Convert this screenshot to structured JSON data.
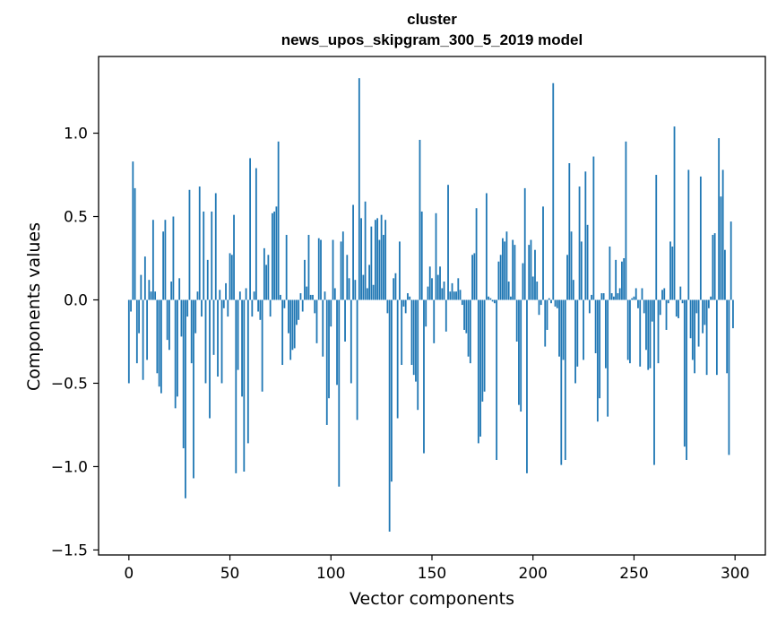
{
  "chart_data": {
    "type": "bar",
    "title": [
      "cluster",
      "news_upos_skipgram_300_5_2019 model"
    ],
    "xlabel": "Vector components",
    "ylabel": "Components values",
    "xlim": [
      -15,
      315
    ],
    "ylim": [
      -1.53,
      1.46
    ],
    "xticks": [
      0,
      50,
      100,
      150,
      200,
      250,
      300
    ],
    "yticks": [
      -1.5,
      -1.0,
      -0.5,
      0.0,
      0.5,
      1.0
    ],
    "ytick_labels": [
      "−1.5",
      "−1.0",
      "−0.5",
      "0.0",
      "0.5",
      "1.0"
    ],
    "grid": false,
    "bar_color": "#1f77b4",
    "x": "component index 0-299",
    "values": [
      -0.5,
      -0.07,
      0.83,
      0.67,
      -0.38,
      -0.2,
      0.15,
      -0.48,
      0.26,
      -0.36,
      0.12,
      0.05,
      0.48,
      0.05,
      -0.44,
      -0.52,
      -0.56,
      0.41,
      0.48,
      -0.24,
      -0.3,
      0.11,
      0.5,
      -0.65,
      -0.58,
      0.13,
      -0.22,
      -0.89,
      -1.19,
      -0.1,
      0.66,
      -0.38,
      -1.07,
      -0.2,
      0.05,
      0.68,
      -0.1,
      0.53,
      -0.5,
      0.24,
      -0.71,
      0.53,
      -0.33,
      0.64,
      -0.46,
      0.06,
      -0.5,
      -0.05,
      0.1,
      -0.1,
      0.28,
      0.27,
      0.51,
      -1.04,
      -0.42,
      0.05,
      -0.58,
      -1.03,
      0.07,
      -0.86,
      0.85,
      -0.1,
      0.05,
      0.79,
      -0.07,
      -0.12,
      -0.55,
      0.31,
      0.21,
      0.27,
      -0.1,
      0.52,
      0.53,
      0.56,
      0.95,
      0.03,
      -0.39,
      -0.05,
      0.39,
      -0.2,
      -0.36,
      -0.3,
      -0.29,
      -0.15,
      -0.12,
      0.04,
      -0.07,
      0.24,
      0.08,
      0.39,
      0.03,
      0.03,
      -0.08,
      -0.26,
      0.37,
      0.36,
      -0.34,
      0.05,
      -0.75,
      -0.59,
      -0.16,
      0.36,
      0.07,
      -0.51,
      -1.12,
      0.35,
      0.41,
      -0.25,
      0.27,
      0.13,
      -0.5,
      0.57,
      0.12,
      -0.72,
      1.33,
      0.49,
      0.15,
      0.59,
      0.07,
      0.21,
      0.44,
      0.09,
      0.48,
      0.49,
      0.36,
      0.51,
      0.39,
      0.48,
      -0.08,
      -1.39,
      -1.09,
      0.13,
      0.16,
      -0.71,
      0.35,
      -0.39,
      -0.04,
      -0.08,
      0.04,
      0.02,
      -0.39,
      -0.45,
      -0.49,
      -0.66,
      0.96,
      0.53,
      -0.92,
      -0.16,
      0.08,
      0.2,
      0.13,
      -0.26,
      0.52,
      0.15,
      0.2,
      0.07,
      0.11,
      -0.19,
      0.69,
      0.05,
      0.1,
      0.05,
      0.05,
      0.13,
      0.06,
      -0.03,
      -0.18,
      -0.2,
      -0.34,
      -0.38,
      0.27,
      0.28,
      0.55,
      -0.86,
      -0.82,
      -0.61,
      -0.55,
      0.64,
      0.02,
      0.01,
      -0.01,
      -0.02,
      -0.96,
      0.23,
      0.27,
      0.37,
      0.35,
      0.41,
      0.11,
      0.02,
      0.36,
      0.33,
      -0.25,
      -0.63,
      -0.67,
      0.22,
      0.67,
      -1.04,
      0.33,
      0.36,
      0.14,
      0.3,
      0.11,
      -0.09,
      -0.03,
      0.56,
      -0.28,
      -0.18,
      0.01,
      -0.02,
      1.3,
      -0.04,
      -0.05,
      -0.34,
      -0.99,
      -0.36,
      -0.96,
      0.27,
      0.82,
      0.41,
      0.12,
      -0.5,
      -0.4,
      0.68,
      0.35,
      -0.36,
      0.77,
      0.45,
      -0.08,
      0.03,
      0.86,
      -0.32,
      -0.73,
      -0.59,
      0.04,
      0.04,
      -0.41,
      -0.7,
      0.32,
      0.04,
      0.02,
      0.24,
      0.04,
      0.07,
      0.23,
      0.25,
      0.95,
      -0.36,
      -0.38,
      0.01,
      0.02,
      0.07,
      -0.05,
      -0.4,
      0.07,
      -0.08,
      -0.3,
      -0.42,
      -0.41,
      -0.13,
      -0.99,
      0.75,
      -0.38,
      -0.09,
      0.06,
      0.07,
      -0.18,
      -0.02,
      0.35,
      0.32,
      1.04,
      -0.1,
      -0.11,
      0.08,
      -0.02,
      -0.88,
      -0.96,
      0.78,
      -0.23,
      -0.36,
      -0.44,
      -0.08,
      -0.28,
      0.74,
      -0.2,
      -0.15,
      -0.45,
      -0.05,
      0.02,
      0.39,
      0.4,
      -0.45,
      0.97,
      0.62,
      0.78,
      0.3,
      -0.44,
      -0.93,
      0.47,
      -0.17
    ]
  }
}
